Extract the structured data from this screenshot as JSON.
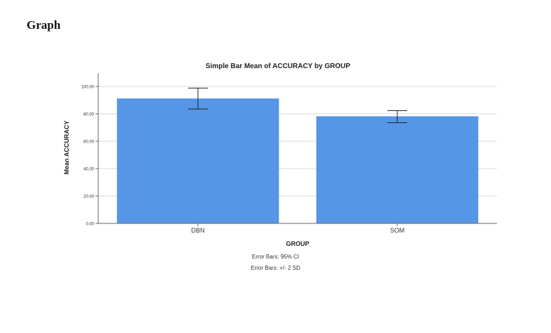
{
  "page": {
    "heading": "Graph"
  },
  "chart_data": {
    "type": "bar",
    "title": "Simple Bar Mean of ACCURACY by GROUP",
    "xlabel": "GROUP",
    "ylabel": "Mean ACCURACY",
    "categories": [
      "DBN",
      "SOM"
    ],
    "values": [
      91.0,
      78.0
    ],
    "error_bars": [
      {
        "low": 83.5,
        "high": 98.8
      },
      {
        "low": 73.5,
        "high": 82.3
      }
    ],
    "ylim": [
      0,
      100
    ],
    "yticks": [
      "0.00",
      "20.00",
      "40.00",
      "60.00",
      "80.00",
      "100.00"
    ],
    "grid": true,
    "bar_color": "#5596e6",
    "notes": [
      "Error Bars: 95% CI",
      "Error Bars: +/- 2 SD"
    ]
  }
}
